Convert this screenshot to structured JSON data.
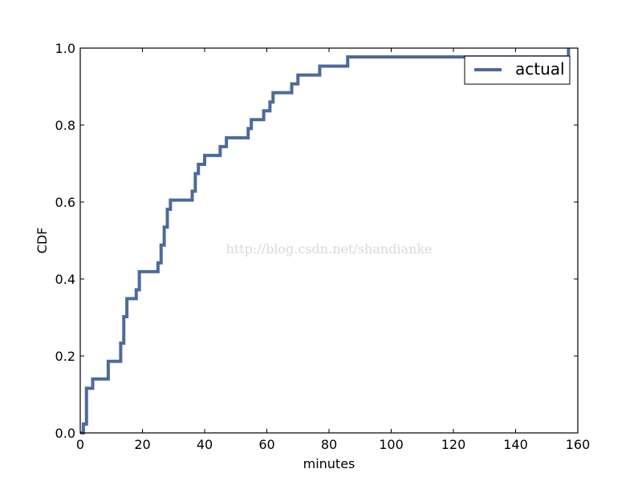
{
  "chart_data": {
    "type": "line",
    "drawstyle": "steps-post",
    "xlabel": "minutes",
    "ylabel": "CDF",
    "xlim": [
      0,
      160
    ],
    "ylim": [
      0,
      1.0
    ],
    "xticks": [
      0,
      20,
      40,
      60,
      80,
      100,
      120,
      140,
      160
    ],
    "yticks": [
      0.0,
      0.2,
      0.4,
      0.6,
      0.8,
      1.0
    ],
    "xtick_labels": [
      "0",
      "20",
      "40",
      "60",
      "80",
      "100",
      "120",
      "140",
      "160"
    ],
    "ytick_labels": [
      "0.0",
      "0.2",
      "0.4",
      "0.6",
      "0.8",
      "1.0"
    ],
    "grid": false,
    "legend_position": "top-right",
    "series": [
      {
        "name": "actual",
        "color": "#4c6a9c",
        "x": [
          0,
          1,
          2,
          4,
          9,
          13,
          14,
          15,
          18,
          19,
          25,
          26,
          27,
          28,
          29,
          36,
          37,
          38,
          40,
          45,
          47,
          54,
          55,
          59,
          61,
          62,
          68,
          70,
          77,
          86,
          157
        ],
        "y": [
          0.0,
          0.023,
          0.116,
          0.14,
          0.186,
          0.233,
          0.302,
          0.349,
          0.372,
          0.419,
          0.442,
          0.488,
          0.535,
          0.581,
          0.605,
          0.628,
          0.674,
          0.698,
          0.721,
          0.744,
          0.767,
          0.791,
          0.814,
          0.837,
          0.86,
          0.884,
          0.907,
          0.93,
          0.953,
          0.977,
          1.0
        ]
      }
    ]
  },
  "watermark": "http://blog.csdn.net/shandianke"
}
